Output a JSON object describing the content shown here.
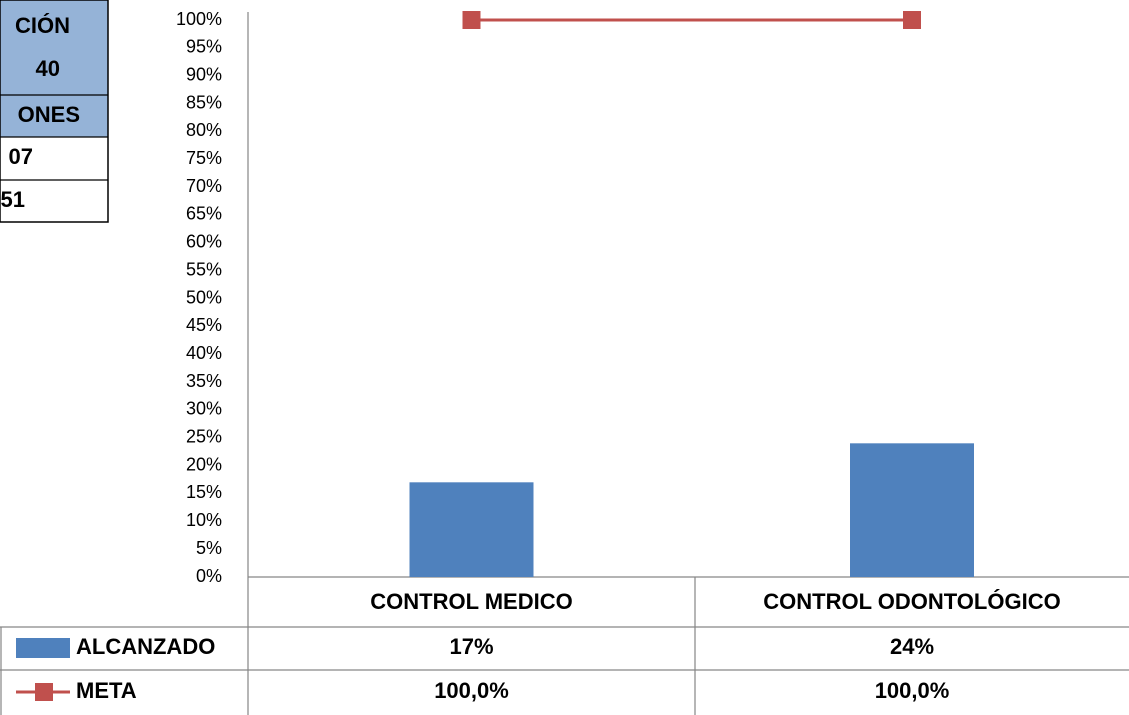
{
  "side_table": {
    "rows": [
      "CIÓN",
      "40",
      "ONES",
      "07",
      "51"
    ]
  },
  "chart_data": {
    "type": "bar",
    "categories": [
      "CONTROL MEDICO",
      "CONTROL ODONTOLÓGICO"
    ],
    "series": [
      {
        "name": "ALCANZADO",
        "type": "bar",
        "color": "#4f81bd",
        "values": [
          17,
          24
        ],
        "value_labels": [
          "17%",
          "24%"
        ]
      },
      {
        "name": "META",
        "type": "line",
        "color": "#c0504d",
        "values": [
          100,
          100
        ],
        "value_labels": [
          "100,0%",
          "100,0%"
        ]
      }
    ],
    "ylim": [
      0,
      100
    ],
    "yticks": [
      {
        "value": 0,
        "label": "0%"
      },
      {
        "value": 5,
        "label": "5%"
      },
      {
        "value": 10,
        "label": "10%"
      },
      {
        "value": 15,
        "label": "15%"
      },
      {
        "value": 20,
        "label": "20%"
      },
      {
        "value": 25,
        "label": "25%"
      },
      {
        "value": 30,
        "label": "30%"
      },
      {
        "value": 35,
        "label": "35%"
      },
      {
        "value": 40,
        "label": "40%"
      },
      {
        "value": 45,
        "label": "45%"
      },
      {
        "value": 50,
        "label": "50%"
      },
      {
        "value": 55,
        "label": "55%"
      },
      {
        "value": 60,
        "label": "60%"
      },
      {
        "value": 65,
        "label": "65%"
      },
      {
        "value": 70,
        "label": "70%"
      },
      {
        "value": 75,
        "label": "75%"
      },
      {
        "value": 80,
        "label": "80%"
      },
      {
        "value": 85,
        "label": "85%"
      },
      {
        "value": 90,
        "label": "90%"
      },
      {
        "value": 95,
        "label": "95%"
      },
      {
        "value": 100,
        "label": "100%"
      }
    ],
    "grid": false
  }
}
